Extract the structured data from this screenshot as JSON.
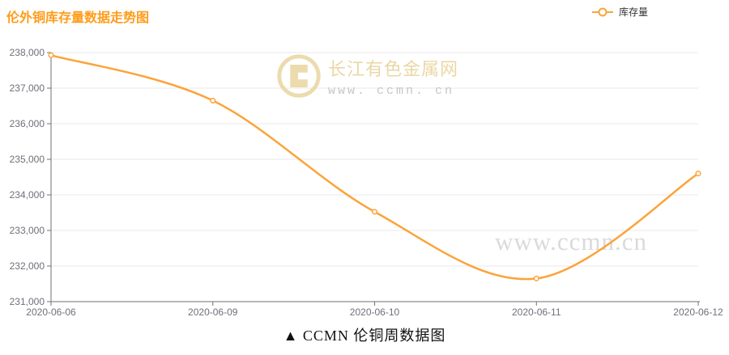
{
  "page": {
    "title": "伦外铜库存量数据走势图",
    "caption": "▲ CCMN 伦铜周数据图"
  },
  "legend": {
    "label": "库存量"
  },
  "watermarks": {
    "center_brand": "长江有色金属网",
    "center_url": "www. ccmn. cn",
    "corner_url": "www.ccmn.cn"
  },
  "colors": {
    "line_orange": "#FBA43B",
    "title_orange": "#FF9C1B",
    "axis_line": "#707070",
    "axis_text": "#6E7079",
    "gridline": "#E8E8E8",
    "marker_fill": "#FFFFFF",
    "watermark_tan": "#EAD7A4",
    "watermark_gray": "#C6C6C6",
    "corner_watermark_gray": "#DADADA"
  },
  "chart_data": {
    "type": "line",
    "title": "伦外铜库存量数据走势图",
    "categories": [
      "2020-06-06",
      "2020-06-09",
      "2020-06-10",
      "2020-06-11",
      "2020-06-12"
    ],
    "series": [
      {
        "name": "库存量",
        "values": [
          237925,
          236650,
          233525,
          231650,
          234600
        ]
      }
    ],
    "xlabel": "",
    "ylabel": "",
    "ylim": [
      231000,
      238000
    ],
    "ytick_step": 1000,
    "grid": true,
    "smooth": true,
    "legend_position": "top-right"
  }
}
